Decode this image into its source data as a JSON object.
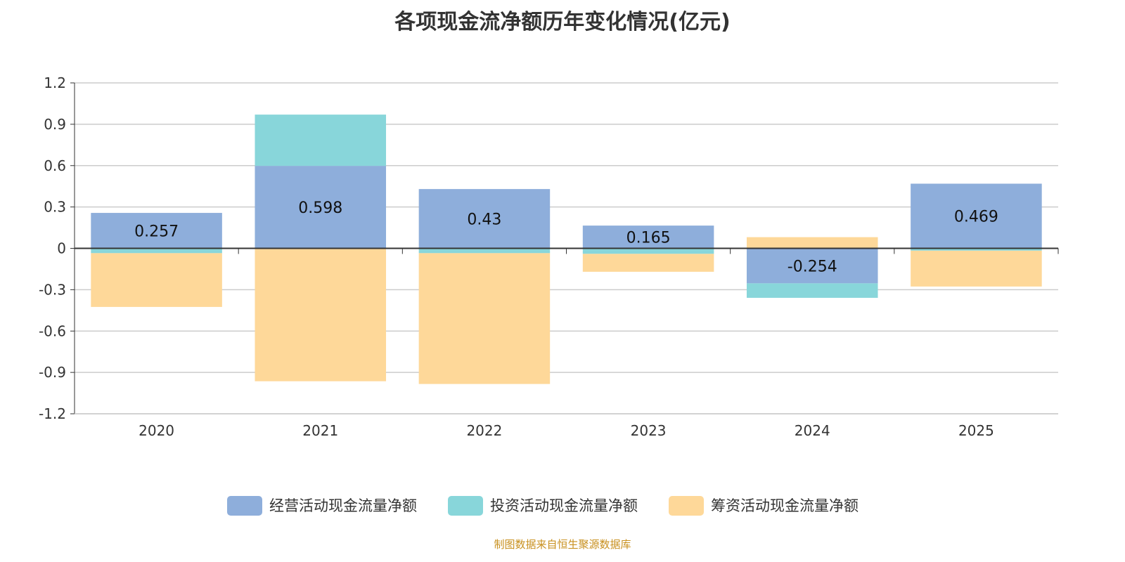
{
  "chart_data": {
    "type": "bar",
    "stacked": true,
    "title": "各项现金流净额历年变化情况(亿元)",
    "categories": [
      "2020",
      "2021",
      "2022",
      "2023",
      "2024",
      "2025"
    ],
    "series": [
      {
        "name": "经营活动现金流量净额",
        "color": "#8eaedb",
        "values": [
          0.257,
          0.598,
          0.43,
          0.165,
          -0.254,
          0.469
        ],
        "labels": [
          "0.257",
          "0.598",
          "0.43",
          "0.165",
          "-0.254",
          "0.469"
        ]
      },
      {
        "name": "投资活动现金流量净额",
        "color": "#88d6da",
        "values": [
          -0.035,
          0.372,
          -0.035,
          -0.04,
          -0.105,
          -0.017
        ]
      },
      {
        "name": "筹资活动现金流量净额",
        "color": "#fed899",
        "values": [
          -0.39,
          -0.964,
          -0.949,
          -0.13,
          0.081,
          -0.26
        ]
      }
    ],
    "ylim": [
      -1.2,
      1.2
    ],
    "yticks": [
      "1.2",
      "0.9",
      "0.6",
      "0.3",
      "0",
      "-0.3",
      "-0.6",
      "-0.9",
      "-1.2"
    ],
    "grid": true,
    "legend": "bottom"
  },
  "source": "制图数据来自恒生聚源数据库"
}
